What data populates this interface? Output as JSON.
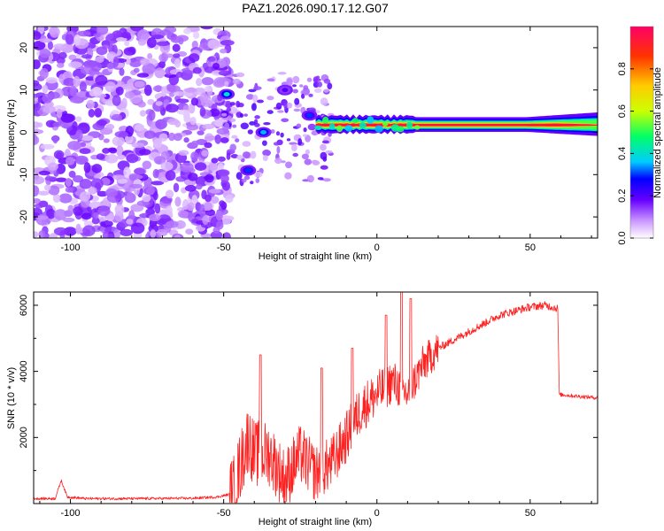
{
  "title": "PAZ1.2026.090.17.12.G07",
  "chart_data": [
    {
      "type": "heatmap",
      "xlabel": "Height of straight line (km)",
      "ylabel": "Frequency (Hz)",
      "xlim": [
        -112,
        72
      ],
      "ylim": [
        -25,
        25
      ],
      "x_ticks": [
        -100,
        -50,
        0,
        50
      ],
      "y_ticks": [
        20,
        10,
        0,
        -10,
        -20
      ],
      "x_tick_labels": [
        "-100",
        "-50",
        "0",
        "50"
      ],
      "y_tick_labels": [
        "20",
        "10",
        "0",
        "-10",
        "-20"
      ],
      "colorbar": {
        "label": "Normalized spectral amplitude",
        "range": [
          0,
          1
        ],
        "ticks": [
          "0.0",
          "0.2",
          "0.4",
          "0.6",
          "0.8"
        ],
        "colors": [
          "#ffffff",
          "#cc99ff",
          "#6600ff",
          "#0000ff",
          "#00ccff",
          "#00ff66",
          "#ccff00",
          "#ffcc00",
          "#ff3300",
          "#ff0066"
        ]
      },
      "noise_region_x": [
        -112,
        -48
      ],
      "features": [
        {
          "x": -49,
          "y": 9,
          "amp": 0.4
        },
        {
          "x": -37,
          "y": 0,
          "amp": 0.35
        },
        {
          "x": -42,
          "y": -9,
          "amp": 0.3
        },
        {
          "x": -30,
          "y": 10,
          "amp": 0.2
        },
        {
          "x": -22,
          "y": 4,
          "amp": 0.3
        }
      ],
      "ridge": {
        "x_start": -20,
        "x_end": 72,
        "y_center": 1.7,
        "peak_amp": 0.95
      }
    },
    {
      "type": "line",
      "xlabel": "Height of straight line (km)",
      "ylabel": "SNR (10 * v/v)",
      "xlim": [
        -112,
        72
      ],
      "ylim": [
        0,
        6400
      ],
      "x_ticks": [
        -100,
        -50,
        0,
        50
      ],
      "y_ticks": [
        2000,
        4000,
        6000
      ],
      "x_tick_labels": [
        "-100",
        "-50",
        "0",
        "50"
      ],
      "y_tick_labels": [
        "2000",
        "4000",
        "6000"
      ],
      "color": "#ff2020",
      "series": [
        {
          "name": "SNR",
          "x": [
            -112,
            -105,
            -103,
            -101,
            -95,
            -80,
            -60,
            -52,
            -47,
            -45,
            -42,
            -40,
            -35,
            -30,
            -25,
            -20,
            -15,
            -10,
            -5,
            0,
            5,
            10,
            15,
            20,
            30,
            40,
            50,
            55,
            59,
            59.5,
            65,
            72
          ],
          "y": [
            150,
            150,
            700,
            200,
            150,
            150,
            160,
            200,
            300,
            1000,
            2000,
            1500,
            1500,
            700,
            1500,
            900,
            1200,
            2000,
            2900,
            3300,
            3700,
            3300,
            4200,
            4700,
            5200,
            5700,
            5950,
            6000,
            5900,
            3300,
            3250,
            3200
          ]
        }
      ],
      "spikes": [
        {
          "x": -38,
          "y": 4500
        },
        {
          "x": -18,
          "y": 4100
        },
        {
          "x": -8,
          "y": 4700
        },
        {
          "x": 3,
          "y": 5700
        },
        {
          "x": 8,
          "y": 6450
        },
        {
          "x": 11,
          "y": 6200
        }
      ]
    }
  ]
}
